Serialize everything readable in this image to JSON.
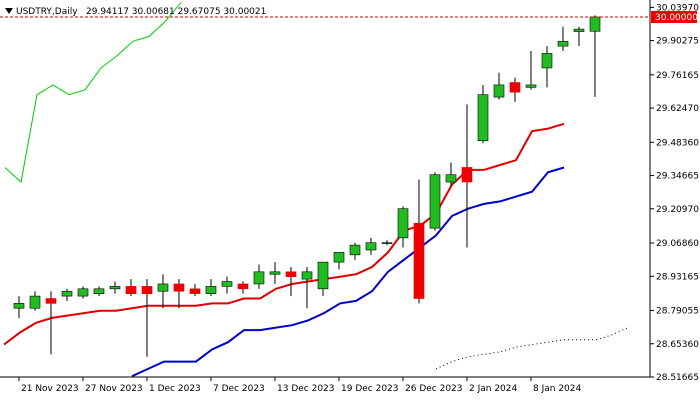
{
  "header": {
    "symbol": "USDTRY,Daily",
    "ohlc": "29.94117 30.00681 29.67075 30.00021"
  },
  "colors": {
    "bull": "#22bb22",
    "bear": "#ee0000",
    "wick": "#000000",
    "red_line": "#dd0000",
    "blue_line": "#0000cc",
    "green_line": "#00cc00",
    "price_line": "#cc0000",
    "axis": "#000000"
  },
  "chart_data": {
    "type": "candlestick",
    "y_ticks": [
      "30.03970",
      "29.90275",
      "29.76165",
      "29.62470",
      "29.48360",
      "29.34665",
      "29.20970",
      "29.06860",
      "28.93165",
      "28.79055",
      "28.65360",
      "28.51665"
    ],
    "current_price_label": "30.00000",
    "current_price": 30.0,
    "ylim": [
      28.51665,
      30.0535
    ],
    "x_labels": [
      {
        "label": "21 Nov 2023",
        "index": 1
      },
      {
        "label": "27 Nov 2023",
        "index": 5
      },
      {
        "label": "1 Dec 2023",
        "index": 9
      },
      {
        "label": "7 Dec 2023",
        "index": 13
      },
      {
        "label": "13 Dec 2023",
        "index": 17
      },
      {
        "label": "19 Dec 2023",
        "index": 21
      },
      {
        "label": "26 Dec 2023",
        "index": 25
      },
      {
        "label": "2 Jan 2024",
        "index": 29
      },
      {
        "label": "8 Jan 2024",
        "index": 33
      }
    ],
    "candles": [
      {
        "o": 28.8,
        "h": 28.85,
        "l": 28.76,
        "c": 28.82
      },
      {
        "o": 28.8,
        "h": 28.87,
        "l": 28.79,
        "c": 28.85
      },
      {
        "o": 28.84,
        "h": 28.87,
        "l": 28.61,
        "c": 28.82
      },
      {
        "o": 28.85,
        "h": 28.88,
        "l": 28.83,
        "c": 28.87
      },
      {
        "o": 28.85,
        "h": 28.89,
        "l": 28.84,
        "c": 28.88
      },
      {
        "o": 28.86,
        "h": 28.89,
        "l": 28.85,
        "c": 28.88
      },
      {
        "o": 28.88,
        "h": 28.91,
        "l": 28.86,
        "c": 28.89
      },
      {
        "o": 28.89,
        "h": 28.92,
        "l": 28.85,
        "c": 28.86
      },
      {
        "o": 28.89,
        "h": 28.92,
        "l": 28.6,
        "c": 28.86
      },
      {
        "o": 28.87,
        "h": 28.94,
        "l": 28.8,
        "c": 28.9
      },
      {
        "o": 28.9,
        "h": 28.92,
        "l": 28.8,
        "c": 28.87
      },
      {
        "o": 28.88,
        "h": 28.9,
        "l": 28.85,
        "c": 28.86
      },
      {
        "o": 28.86,
        "h": 28.92,
        "l": 28.85,
        "c": 28.89
      },
      {
        "o": 28.89,
        "h": 28.93,
        "l": 28.86,
        "c": 28.91
      },
      {
        "o": 28.9,
        "h": 28.91,
        "l": 28.86,
        "c": 28.88
      },
      {
        "o": 28.9,
        "h": 28.98,
        "l": 28.88,
        "c": 28.95
      },
      {
        "o": 28.94,
        "h": 28.99,
        "l": 28.9,
        "c": 28.95
      },
      {
        "o": 28.95,
        "h": 28.97,
        "l": 28.85,
        "c": 28.93
      },
      {
        "o": 28.92,
        "h": 28.97,
        "l": 28.8,
        "c": 28.95
      },
      {
        "o": 28.88,
        "h": 28.99,
        "l": 28.85,
        "c": 28.99
      },
      {
        "o": 28.99,
        "h": 29.03,
        "l": 28.96,
        "c": 29.03
      },
      {
        "o": 29.02,
        "h": 29.07,
        "l": 29.0,
        "c": 29.06
      },
      {
        "o": 29.04,
        "h": 29.09,
        "l": 29.02,
        "c": 29.07
      },
      {
        "o": 29.07,
        "h": 29.08,
        "l": 29.06,
        "c": 29.07
      },
      {
        "o": 29.09,
        "h": 29.22,
        "l": 29.05,
        "c": 29.21
      },
      {
        "o": 29.15,
        "h": 29.33,
        "l": 28.82,
        "c": 28.84
      },
      {
        "o": 29.13,
        "h": 29.36,
        "l": 29.12,
        "c": 29.35
      },
      {
        "o": 29.32,
        "h": 29.4,
        "l": 29.3,
        "c": 29.35
      },
      {
        "o": 29.38,
        "h": 29.64,
        "l": 29.05,
        "c": 29.32
      },
      {
        "o": 29.49,
        "h": 29.72,
        "l": 29.48,
        "c": 29.68
      },
      {
        "o": 29.67,
        "h": 29.77,
        "l": 29.66,
        "c": 29.72
      },
      {
        "o": 29.73,
        "h": 29.75,
        "l": 29.65,
        "c": 29.69
      },
      {
        "o": 29.71,
        "h": 29.86,
        "l": 29.7,
        "c": 29.72
      },
      {
        "o": 29.79,
        "h": 29.88,
        "l": 29.71,
        "c": 29.85
      },
      {
        "o": 29.88,
        "h": 29.96,
        "l": 29.86,
        "c": 29.9
      },
      {
        "o": 29.94,
        "h": 29.96,
        "l": 29.88,
        "c": 29.95
      },
      {
        "o": 29.94117,
        "h": 30.00681,
        "l": 29.67075,
        "c": 30.00021
      }
    ],
    "red_line": [
      28.65,
      28.7,
      28.74,
      28.76,
      28.77,
      28.78,
      28.79,
      28.79,
      28.8,
      28.81,
      28.81,
      28.81,
      28.81,
      28.82,
      28.82,
      28.84,
      28.84,
      28.88,
      28.9,
      28.91,
      28.92,
      28.93,
      28.94,
      28.97,
      29.03,
      29.12,
      29.14,
      29.19,
      29.31,
      29.37,
      29.37,
      29.39,
      29.41,
      29.53,
      29.54,
      29.56
    ],
    "blue_line": [
      null,
      null,
      null,
      null,
      null,
      null,
      null,
      null,
      28.52,
      28.55,
      28.58,
      28.58,
      28.58,
      28.63,
      28.66,
      28.71,
      28.71,
      28.72,
      28.73,
      28.75,
      28.78,
      28.82,
      28.83,
      28.87,
      28.95,
      29.0,
      29.05,
      29.1,
      29.18,
      29.21,
      29.23,
      29.24,
      29.26,
      29.28,
      29.36,
      29.38
    ],
    "green_line": [
      29.38,
      29.32,
      29.68,
      29.72,
      29.68,
      29.7,
      29.79,
      29.84,
      29.9,
      29.92,
      29.98,
      30.06
    ],
    "dotted_line": [
      null,
      null,
      null,
      null,
      null,
      null,
      null,
      null,
      null,
      null,
      null,
      null,
      null,
      null,
      null,
      null,
      null,
      null,
      null,
      null,
      null,
      null,
      null,
      null,
      null,
      null,
      null,
      28.55,
      28.58,
      28.6,
      28.61,
      28.62,
      28.64,
      28.65,
      28.66,
      28.67,
      28.67,
      28.67,
      28.69,
      28.72
    ]
  }
}
